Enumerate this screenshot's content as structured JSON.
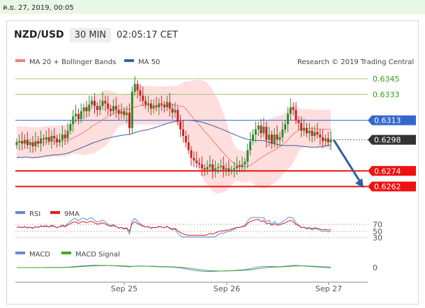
{
  "timestamp": "ค.ย. 27, 2019, 00:05",
  "header": {
    "symbol": "NZD/USD",
    "timeframe": "30 MIN",
    "time": "02:05:17 CET"
  },
  "legend": {
    "bb": "MA 20 + Bollinger Bands",
    "ma50": "MA 50",
    "credit": "Research © 2019 Trading Central",
    "rsi": "RSI",
    "rsi_ma": "9MA",
    "macd": "MACD",
    "macd_signal": "MACD Signal"
  },
  "colors": {
    "up": "#2e8b2e",
    "down": "#cc2222",
    "bb_fill": "#ffd6d6",
    "ma20": "#e88080",
    "ma50": "#3a5fa0",
    "resistance": "#99cc66",
    "pivot": "#3366cc",
    "support": "#ee1111",
    "current": "#333333",
    "arrow": "#2e5fa0"
  },
  "chart_data": [
    {
      "type": "candlestick",
      "title": "NZD/USD",
      "xlabel": "",
      "ylabel": "",
      "x_ticks": [
        "Sep 25",
        "Sep 26",
        "Sep 27"
      ],
      "ylim": [
        0.625,
        0.6352
      ],
      "levels": [
        {
          "value": 0.6345,
          "label": "0.6345",
          "kind": "resistance"
        },
        {
          "value": 0.6333,
          "label": "0.6333",
          "kind": "resistance"
        },
        {
          "value": 0.6313,
          "label": "0.6313",
          "kind": "pivot"
        },
        {
          "value": 0.6298,
          "label": "0.6298",
          "kind": "current"
        },
        {
          "value": 0.6274,
          "label": "0.6274",
          "kind": "support"
        },
        {
          "value": 0.6262,
          "label": "0.6262",
          "kind": "support"
        }
      ],
      "close": [
        0.6296,
        0.6297,
        0.6295,
        0.6298,
        0.6294,
        0.6296,
        0.6293,
        0.6297,
        0.6295,
        0.6299,
        0.6298,
        0.63,
        0.6297,
        0.6301,
        0.6299,
        0.6296,
        0.6298,
        0.6302,
        0.6299,
        0.6305,
        0.631,
        0.6316,
        0.6318,
        0.6314,
        0.632,
        0.6323,
        0.632,
        0.6325,
        0.6328,
        0.6324,
        0.6321,
        0.6324,
        0.6328,
        0.6326,
        0.6322,
        0.632,
        0.6324,
        0.6321,
        0.6318,
        0.632,
        0.6317,
        0.6319,
        0.6307,
        0.6335,
        0.6341,
        0.6336,
        0.6332,
        0.6328,
        0.6325,
        0.6326,
        0.6322,
        0.6324,
        0.6323,
        0.6326,
        0.6325,
        0.6323,
        0.6327,
        0.6322,
        0.6319,
        0.6321,
        0.6312,
        0.6306,
        0.6301,
        0.6296,
        0.629,
        0.6284,
        0.6282,
        0.628,
        0.6279,
        0.6276,
        0.6275,
        0.6277,
        0.6279,
        0.6274,
        0.6276,
        0.6277,
        0.6278,
        0.6275,
        0.6276,
        0.6274,
        0.6275,
        0.6276,
        0.6278,
        0.6277,
        0.6279,
        0.6281,
        0.629,
        0.6297,
        0.6302,
        0.6306,
        0.6309,
        0.6303,
        0.6308,
        0.6298,
        0.6302,
        0.6295,
        0.6302,
        0.6298,
        0.63,
        0.6306,
        0.631,
        0.6318,
        0.6323,
        0.6321,
        0.6313,
        0.6311,
        0.6305,
        0.6307,
        0.6303,
        0.6305,
        0.6301,
        0.6304,
        0.6302,
        0.63,
        0.6297,
        0.6299,
        0.6296,
        0.6298
      ],
      "ma20_approx": "MA 20 + Bollinger Bands",
      "ma50_approx": "MA 50"
    },
    {
      "type": "line",
      "title": "RSI",
      "y_ticks": [
        "70",
        "50",
        "30"
      ],
      "series": [
        {
          "name": "RSI"
        },
        {
          "name": "9MA"
        }
      ]
    },
    {
      "type": "line",
      "title": "MACD",
      "y_ticks": [
        "0"
      ],
      "series": [
        {
          "name": "MACD"
        },
        {
          "name": "MACD Signal"
        }
      ]
    }
  ]
}
